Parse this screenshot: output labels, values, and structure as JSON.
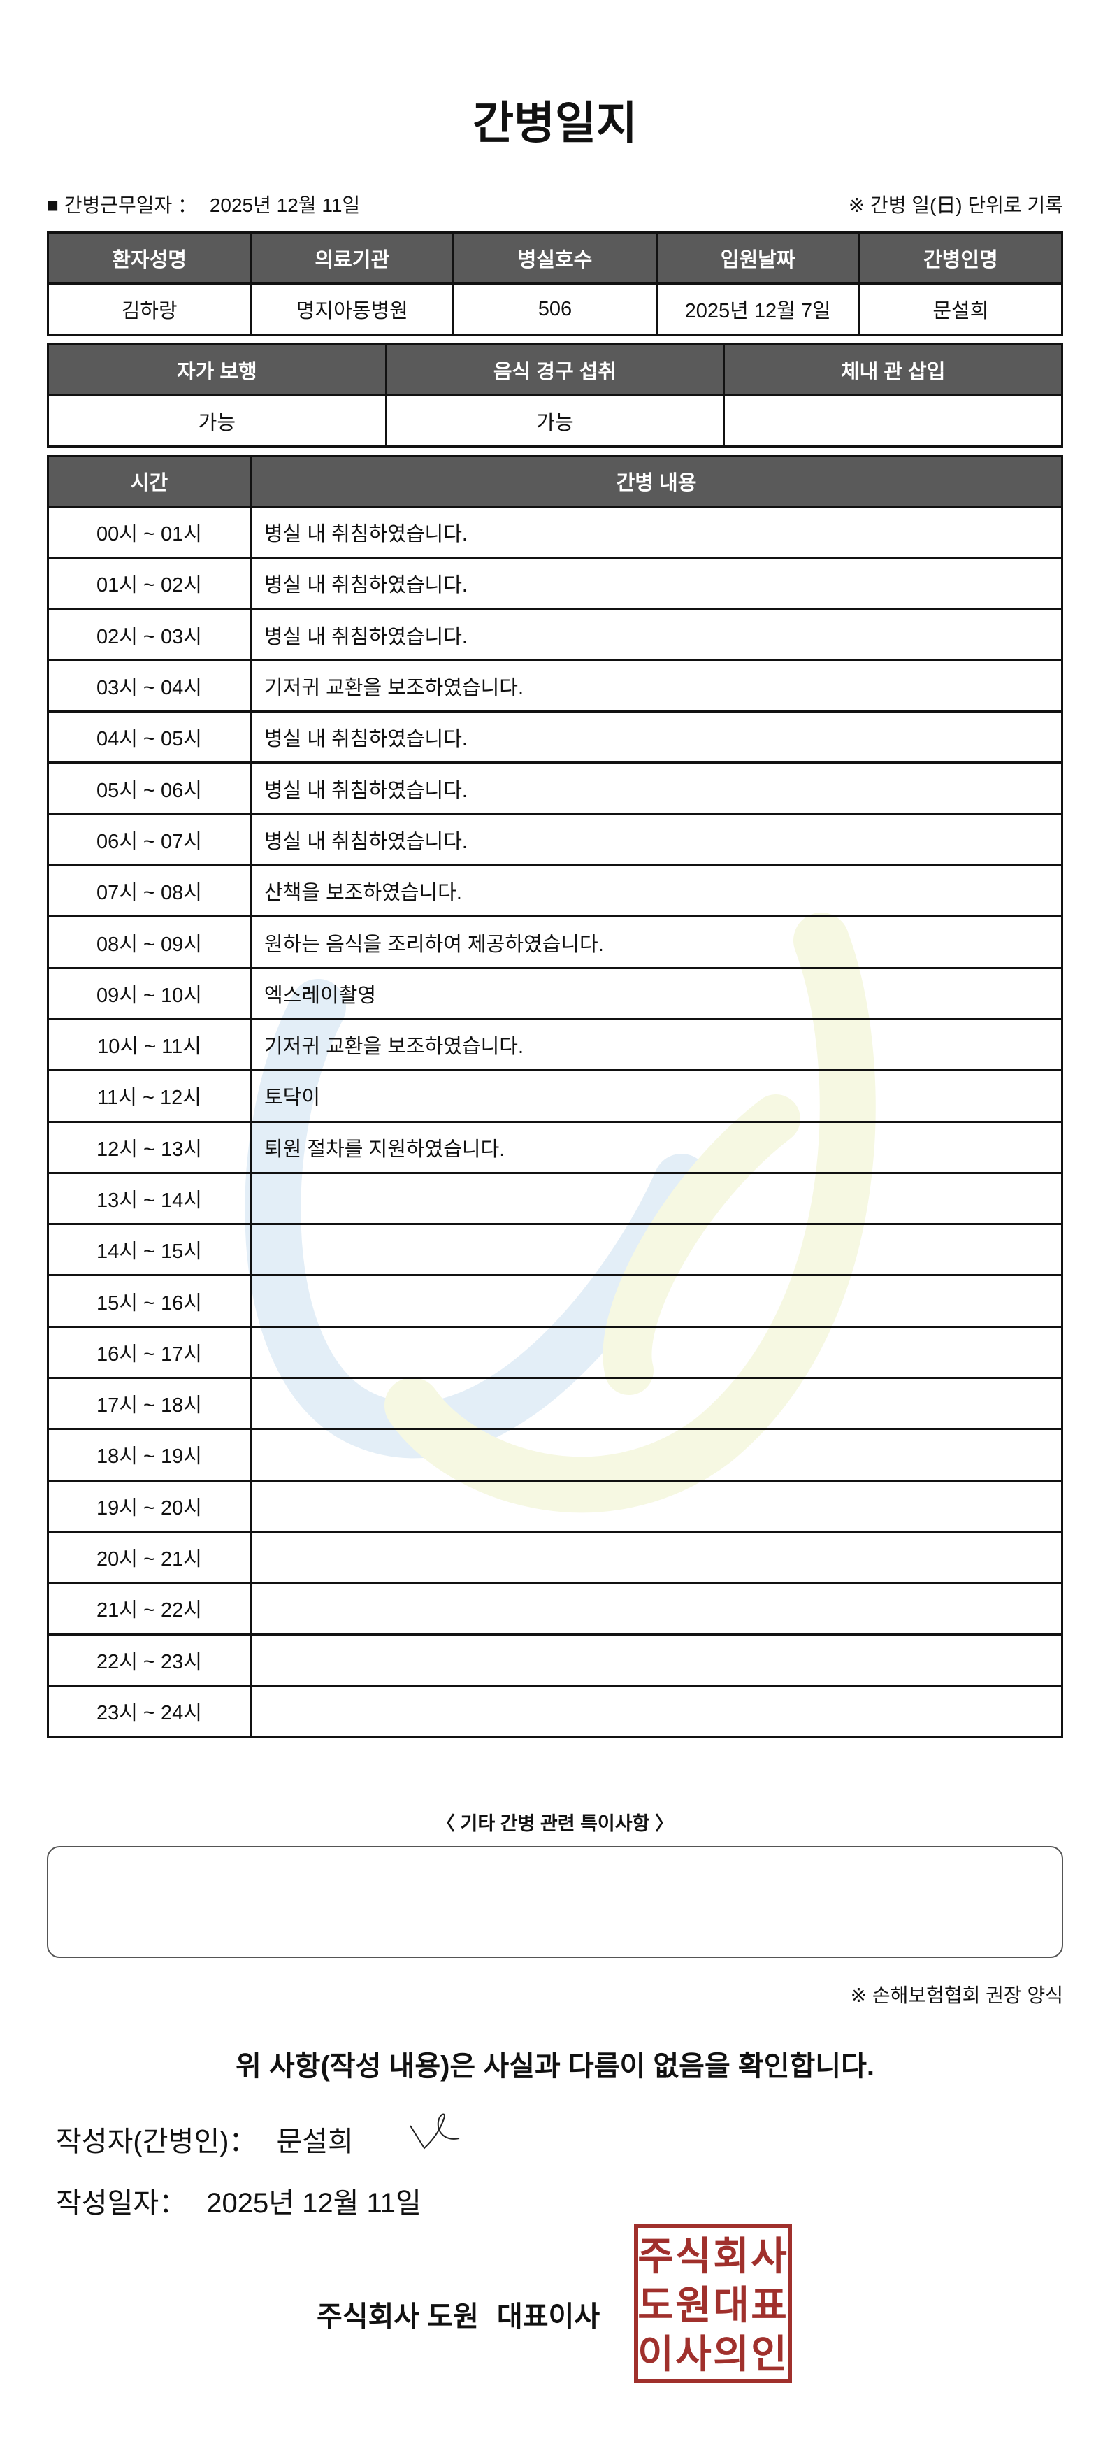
{
  "title": "간병일지",
  "info": {
    "work_date_label": "■ 간병근무일자 ：",
    "work_date": "2025년 12월 11일",
    "note": "※ 간병 일(日) 단위로 기록"
  },
  "patient_table": {
    "headers": [
      "환자성명",
      "의료기관",
      "병실호수",
      "입원날짜",
      "간병인명"
    ],
    "values": [
      "김하랑",
      "명지아동병원",
      "506",
      "2025년 12월 7일",
      "문설희"
    ]
  },
  "status_table": {
    "headers": [
      "자가 보행",
      "음식 경구 섭취",
      "체내 관 삽입"
    ],
    "values": [
      "가능",
      "가능",
      ""
    ]
  },
  "log_table": {
    "headers": [
      "시간",
      "간병 내용"
    ],
    "rows": [
      {
        "time": "00시 ~ 01시",
        "content": "병실 내 취침하였습니다."
      },
      {
        "time": "01시 ~ 02시",
        "content": "병실 내 취침하였습니다."
      },
      {
        "time": "02시 ~ 03시",
        "content": "병실 내 취침하였습니다."
      },
      {
        "time": "03시 ~ 04시",
        "content": "기저귀 교환을 보조하였습니다."
      },
      {
        "time": "04시 ~ 05시",
        "content": "병실 내 취침하였습니다."
      },
      {
        "time": "05시 ~ 06시",
        "content": "병실 내 취침하였습니다."
      },
      {
        "time": "06시 ~ 07시",
        "content": "병실 내 취침하였습니다."
      },
      {
        "time": "07시 ~ 08시",
        "content": "산책을 보조하였습니다."
      },
      {
        "time": "08시 ~ 09시",
        "content": "원하는 음식을 조리하여 제공하였습니다."
      },
      {
        "time": "09시 ~ 10시",
        "content": "엑스레이촬영"
      },
      {
        "time": "10시 ~ 11시",
        "content": "기저귀 교환을 보조하였습니다."
      },
      {
        "time": "11시 ~ 12시",
        "content": "토닥이"
      },
      {
        "time": "12시 ~ 13시",
        "content": "퇴원 절차를 지원하였습니다."
      },
      {
        "time": "13시 ~ 14시",
        "content": ""
      },
      {
        "time": "14시 ~ 15시",
        "content": ""
      },
      {
        "time": "15시 ~ 16시",
        "content": ""
      },
      {
        "time": "16시 ~ 17시",
        "content": ""
      },
      {
        "time": "17시 ~ 18시",
        "content": ""
      },
      {
        "time": "18시 ~ 19시",
        "content": ""
      },
      {
        "time": "19시 ~ 20시",
        "content": ""
      },
      {
        "time": "20시 ~ 21시",
        "content": ""
      },
      {
        "time": "21시 ~ 22시",
        "content": ""
      },
      {
        "time": "22시 ~ 23시",
        "content": ""
      },
      {
        "time": "23시 ~ 24시",
        "content": ""
      }
    ]
  },
  "remarks": {
    "label": "〈 기타 간병 관련 특이사항 〉",
    "value": ""
  },
  "recommendation": "※ 손해보험협회 권장 양식",
  "confirmation": "위 사항(작성 내용)은 사실과 다름이 없음을 확인합니다.",
  "writer": {
    "label": "작성자(간병인)：",
    "name": "문설희"
  },
  "written_date": {
    "label": "작성일자：",
    "value": "2025년 12월 11일"
  },
  "company": {
    "name": "주식회사 도원",
    "title": "대표이사"
  },
  "stamp": {
    "lines": [
      "주식회사",
      "도원대표",
      "이사의인"
    ],
    "color": "#a0302c"
  },
  "colors": {
    "header_bg": "#5a5a5a",
    "watermark_blue": "#e3eef7",
    "watermark_yellow": "#f6f8e2"
  }
}
